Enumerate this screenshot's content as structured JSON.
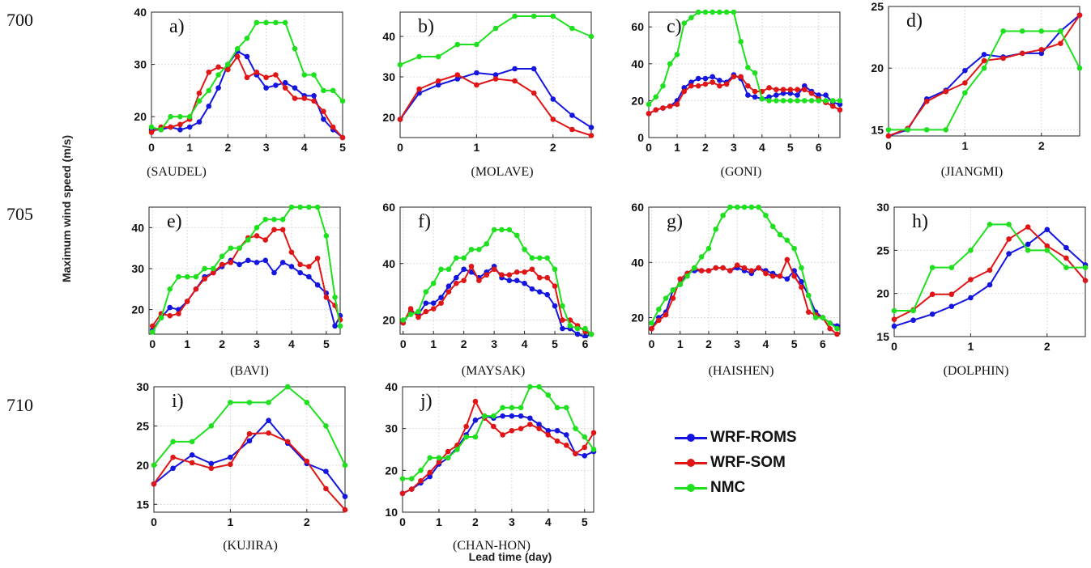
{
  "line_numbers": [
    "700",
    "705",
    "710"
  ],
  "ylabel": "Maximum wind speed (m/s)",
  "xlabel": "Lead time (day)",
  "legend": [
    {
      "name": "WRF-ROMS",
      "color": "#1515e0"
    },
    {
      "name": "WRF-SOM",
      "color": "#e01515"
    },
    {
      "name": "NMC",
      "color": "#1ee01e"
    }
  ],
  "chart_data": [
    {
      "type": "line",
      "panel_label": "a)",
      "caption": "(SAUDEL)",
      "xlim": [
        0,
        5
      ],
      "ylim": [
        16,
        40
      ],
      "xticks": [
        0,
        1,
        2,
        3,
        4,
        5
      ],
      "yticks": [
        20,
        30,
        40
      ],
      "x": [
        0,
        0.25,
        0.5,
        0.75,
        1,
        1.25,
        1.5,
        1.75,
        2,
        2.25,
        2.5,
        2.75,
        3,
        3.25,
        3.5,
        3.75,
        4,
        4.25,
        4.5,
        4.75,
        5
      ],
      "series": [
        {
          "name": "WRF-ROMS",
          "values": [
            17.5,
            17.5,
            18,
            17.5,
            18,
            19,
            22,
            25.5,
            30,
            32.5,
            31.5,
            28,
            25.5,
            26,
            26.5,
            25.5,
            24,
            24,
            19.5,
            17.5,
            16
          ]
        },
        {
          "name": "WRF-SOM",
          "values": [
            17,
            18,
            18,
            18.5,
            19.5,
            24.5,
            28.5,
            29.5,
            29,
            31.5,
            27.5,
            28.5,
            27.5,
            28,
            25.5,
            23.5,
            23.5,
            23,
            21,
            18,
            16
          ]
        },
        {
          "name": "NMC",
          "values": [
            18,
            17.5,
            20,
            20,
            20,
            23,
            25,
            28,
            30,
            33,
            35,
            38,
            38,
            38,
            38,
            33,
            28,
            28,
            25,
            25,
            23
          ]
        }
      ]
    },
    {
      "type": "line",
      "panel_label": "b)",
      "caption": "(MOLAVE)",
      "xlim": [
        0,
        2.5
      ],
      "ylim": [
        15,
        46
      ],
      "xticks": [
        0,
        1,
        2
      ],
      "yticks": [
        20,
        30,
        40
      ],
      "x": [
        0,
        0.25,
        0.5,
        0.75,
        1,
        1.25,
        1.5,
        1.75,
        2,
        2.25,
        2.5
      ],
      "series": [
        {
          "name": "WRF-ROMS",
          "values": [
            19.5,
            26,
            28,
            29.5,
            31,
            30.5,
            32,
            32,
            24.5,
            20.5,
            17.5
          ]
        },
        {
          "name": "WRF-SOM",
          "values": [
            19.5,
            27,
            29,
            30.5,
            28,
            29.5,
            29,
            26,
            19.5,
            17,
            15.5
          ]
        },
        {
          "name": "NMC",
          "values": [
            33,
            35,
            35,
            38,
            38,
            42,
            45,
            45,
            45,
            42,
            40
          ]
        }
      ]
    },
    {
      "type": "line",
      "panel_label": "c)",
      "caption": "(GONI)",
      "xlim": [
        0,
        6.75
      ],
      "ylim": [
        0,
        68
      ],
      "xticks": [
        0,
        1,
        2,
        3,
        4,
        5,
        6
      ],
      "yticks": [
        0,
        20,
        40,
        60
      ],
      "x": [
        0,
        0.25,
        0.5,
        0.75,
        1,
        1.25,
        1.5,
        1.75,
        2,
        2.25,
        2.5,
        2.75,
        3,
        3.25,
        3.5,
        3.75,
        4,
        4.25,
        4.5,
        4.75,
        5,
        5.25,
        5.5,
        5.75,
        6,
        6.25,
        6.5,
        6.75
      ],
      "series": [
        {
          "name": "WRF-ROMS",
          "values": [
            13,
            15,
            16,
            17,
            20,
            27,
            30,
            32,
            32,
            33,
            31,
            30,
            34,
            32,
            23,
            22,
            21,
            22,
            23,
            24,
            24,
            23,
            28,
            25,
            23,
            23,
            19,
            18
          ]
        },
        {
          "name": "WRF-SOM",
          "values": [
            13,
            15,
            16,
            17,
            18,
            25,
            28,
            28,
            29,
            30,
            28,
            29,
            33,
            33,
            28,
            25,
            25,
            27,
            26,
            26,
            26,
            26,
            26,
            24,
            21,
            19,
            17,
            15
          ]
        },
        {
          "name": "NMC",
          "values": [
            18,
            22,
            28,
            40,
            45,
            62,
            65,
            68,
            68,
            68,
            68,
            68,
            68,
            52,
            38,
            35,
            21,
            20,
            20,
            20,
            20,
            20,
            20,
            20,
            20,
            20,
            20,
            20
          ]
        }
      ]
    },
    {
      "type": "line",
      "panel_label": "d)",
      "caption": "(JIANGMI)",
      "xlim": [
        0,
        2.5
      ],
      "ylim": [
        14.5,
        25
      ],
      "xticks": [
        0,
        1,
        2
      ],
      "yticks": [
        15,
        20,
        25
      ],
      "x": [
        0,
        0.25,
        0.5,
        0.75,
        1,
        1.25,
        1.5,
        1.75,
        2,
        2.25,
        2.5
      ],
      "series": [
        {
          "name": "WRF-ROMS",
          "values": [
            14.5,
            15,
            17.5,
            18.2,
            19.8,
            21.1,
            20.9,
            21.2,
            21.2,
            23,
            24.3
          ]
        },
        {
          "name": "WRF-SOM",
          "values": [
            14.5,
            15.1,
            17.3,
            18.1,
            18.8,
            20.6,
            20.8,
            21.2,
            21.5,
            22,
            24.3
          ]
        },
        {
          "name": "NMC",
          "values": [
            15,
            15,
            15,
            15,
            18,
            20,
            23,
            23,
            23,
            23,
            20
          ]
        }
      ]
    },
    {
      "type": "line",
      "panel_label": "e)",
      "caption": "(BAVI)",
      "xlim": [
        -0.1,
        5.4
      ],
      "ylim": [
        14,
        45
      ],
      "xticks": [
        0,
        1,
        2,
        3,
        4,
        5
      ],
      "yticks": [
        20,
        30,
        40
      ],
      "x": [
        0,
        0.25,
        0.5,
        0.75,
        1,
        1.25,
        1.5,
        1.75,
        2,
        2.25,
        2.5,
        2.75,
        3,
        3.25,
        3.5,
        3.75,
        4,
        4.25,
        4.5,
        4.75,
        5,
        5.25,
        5.4
      ],
      "series": [
        {
          "name": "WRF-ROMS",
          "values": [
            15,
            18,
            20.5,
            20,
            22,
            25,
            28,
            29,
            30.5,
            32,
            31,
            32,
            31.5,
            32,
            29,
            31.5,
            30.5,
            29,
            28,
            26,
            24,
            16,
            18.5
          ]
        },
        {
          "name": "WRF-SOM",
          "values": [
            16,
            19,
            18.5,
            19,
            22,
            25,
            27.5,
            29,
            31,
            31.5,
            35,
            37.5,
            38,
            37,
            39.5,
            39.5,
            34,
            31,
            30.5,
            32.5,
            23,
            21,
            17.5
          ]
        },
        {
          "name": "NMC",
          "values": [
            14.5,
            18,
            25,
            28,
            28,
            28,
            30,
            30,
            33,
            35,
            35,
            37,
            40,
            42,
            42,
            42,
            45,
            45,
            45,
            45,
            38,
            23,
            16
          ]
        }
      ]
    },
    {
      "type": "line",
      "panel_label": "f)",
      "caption": "(MAYSAK)",
      "xlim": [
        -0.1,
        6.2
      ],
      "ylim": [
        15,
        60
      ],
      "xticks": [
        0,
        1,
        2,
        3,
        4,
        5,
        6
      ],
      "yticks": [
        20,
        40,
        60
      ],
      "x": [
        0,
        0.25,
        0.5,
        0.75,
        1,
        1.25,
        1.5,
        1.75,
        2,
        2.25,
        2.5,
        2.75,
        3,
        3.25,
        3.5,
        3.75,
        4,
        4.25,
        4.5,
        4.75,
        5,
        5.25,
        5.5,
        5.75,
        6,
        6.2
      ],
      "series": [
        {
          "name": "WRF-ROMS",
          "values": [
            19,
            23,
            22,
            26,
            26,
            28,
            32,
            35,
            38,
            37,
            35,
            37,
            39,
            35,
            34,
            34,
            33,
            31,
            30,
            29,
            25,
            17,
            17,
            15,
            14,
            15
          ]
        },
        {
          "name": "WRF-SOM",
          "values": [
            19,
            24,
            21,
            23,
            24,
            26,
            30,
            33,
            34,
            39,
            34,
            36,
            38,
            36,
            36,
            37,
            37,
            38,
            35,
            35,
            32,
            20,
            20,
            18,
            16,
            15
          ]
        },
        {
          "name": "NMC",
          "values": [
            20,
            22,
            23,
            30,
            33,
            38,
            38,
            42,
            42,
            45,
            45,
            47,
            52,
            52,
            52,
            50,
            45,
            42,
            42,
            42,
            38,
            25,
            18,
            17,
            17,
            15
          ]
        }
      ]
    },
    {
      "type": "line",
      "panel_label": "g)",
      "caption": "(HAISHEN)",
      "xlim": [
        -0.1,
        6.6
      ],
      "ylim": [
        14,
        60
      ],
      "xticks": [
        0,
        1,
        2,
        3,
        4,
        5,
        6
      ],
      "yticks": [
        20,
        40,
        60
      ],
      "x": [
        0,
        0.25,
        0.5,
        0.75,
        1,
        1.25,
        1.5,
        1.75,
        2,
        2.25,
        2.5,
        2.75,
        3,
        3.25,
        3.5,
        3.75,
        4,
        4.25,
        4.5,
        4.75,
        5,
        5.25,
        5.5,
        5.75,
        6,
        6.25,
        6.5
      ],
      "series": [
        {
          "name": "WRF-ROMS",
          "values": [
            16,
            20,
            22,
            30,
            32,
            36,
            37,
            37,
            37,
            38,
            38,
            37,
            38,
            37,
            36,
            38,
            37,
            36,
            35,
            34,
            37,
            33,
            28,
            22,
            20,
            18,
            17
          ]
        },
        {
          "name": "WRF-SOM",
          "values": [
            16,
            19,
            21,
            27,
            34,
            36,
            38,
            37,
            37,
            38,
            38,
            37,
            39,
            38,
            37,
            38,
            36,
            35,
            35,
            41,
            35,
            31,
            22,
            21,
            20,
            16,
            14
          ]
        },
        {
          "name": "NMC",
          "values": [
            18,
            23,
            27,
            30,
            32,
            35,
            38,
            42,
            45,
            52,
            57,
            60,
            60,
            60,
            60,
            60,
            57,
            53,
            50,
            48,
            45,
            38,
            28,
            20,
            20,
            18,
            16
          ]
        }
      ]
    },
    {
      "type": "line",
      "panel_label": "h)",
      "caption": "(DOLPHIN)",
      "xlim": [
        0,
        2.5
      ],
      "ylim": [
        15,
        30
      ],
      "xticks": [
        0,
        1,
        2
      ],
      "yticks": [
        15,
        20,
        25,
        30
      ],
      "x": [
        0,
        0.25,
        0.5,
        0.75,
        1,
        1.25,
        1.5,
        1.75,
        2,
        2.25,
        2.5
      ],
      "series": [
        {
          "name": "WRF-ROMS",
          "values": [
            16.2,
            16.9,
            17.6,
            18.5,
            19.5,
            21,
            24.6,
            25.7,
            27.4,
            25.3,
            23.3
          ]
        },
        {
          "name": "WRF-SOM",
          "values": [
            17,
            18.1,
            19.9,
            19.9,
            21.6,
            22.7,
            26.3,
            27.7,
            25.5,
            24.1,
            21.5
          ]
        },
        {
          "name": "NMC",
          "values": [
            18,
            18,
            23,
            23,
            25,
            28,
            28,
            25,
            25,
            23,
            23
          ]
        }
      ]
    },
    {
      "type": "line",
      "panel_label": "i)",
      "caption": "(KUJIRA)",
      "xlim": [
        0,
        2.5
      ],
      "ylim": [
        14,
        30
      ],
      "xticks": [
        0,
        1,
        2
      ],
      "yticks": [
        15,
        20,
        25,
        30
      ],
      "x": [
        0,
        0.25,
        0.5,
        0.75,
        1,
        1.25,
        1.5,
        1.75,
        2,
        2.25,
        2.5
      ],
      "series": [
        {
          "name": "WRF-ROMS",
          "values": [
            17.6,
            19.6,
            21.3,
            20.2,
            21,
            23.1,
            25.7,
            22.8,
            20.2,
            19.2,
            16
          ]
        },
        {
          "name": "WRF-SOM",
          "values": [
            17.6,
            21,
            20.3,
            19.6,
            20.1,
            24,
            24.1,
            23,
            20.5,
            17,
            14.3
          ]
        },
        {
          "name": "NMC",
          "values": [
            20,
            23,
            23,
            25,
            28,
            28,
            28,
            30,
            28,
            25,
            20
          ]
        }
      ]
    },
    {
      "type": "line",
      "panel_label": "j)",
      "caption": "(CHAN-HON)",
      "xlim": [
        0,
        5.25
      ],
      "ylim": [
        10,
        40
      ],
      "xticks": [
        0,
        1,
        2,
        3,
        4,
        5
      ],
      "yticks": [
        10,
        20,
        30,
        40
      ],
      "x": [
        0,
        0.25,
        0.5,
        0.75,
        1,
        1.25,
        1.5,
        1.75,
        2,
        2.25,
        2.5,
        2.75,
        3,
        3.25,
        3.5,
        3.75,
        4,
        4.25,
        4.5,
        4.75,
        5,
        5.25
      ],
      "series": [
        {
          "name": "WRF-ROMS",
          "values": [
            14.5,
            15.5,
            17,
            18.5,
            21.5,
            23,
            25.5,
            28.5,
            32,
            33,
            32.5,
            33,
            33,
            33,
            32.5,
            31,
            29.5,
            29.5,
            28.5,
            24,
            23.5,
            24.5
          ]
        },
        {
          "name": "WRF-SOM",
          "values": [
            14.5,
            15.5,
            17.5,
            19.5,
            22,
            24.5,
            26,
            30.5,
            36.5,
            32.5,
            30.5,
            28.5,
            29.5,
            30,
            31,
            30,
            28.5,
            27,
            26,
            24,
            25.5,
            29
          ]
        },
        {
          "name": "NMC",
          "values": [
            18,
            18,
            20,
            23,
            23,
            23,
            25,
            28,
            28,
            33,
            33,
            35,
            35,
            35,
            40,
            40,
            38,
            35,
            35,
            30,
            28,
            25
          ]
        }
      ]
    }
  ]
}
